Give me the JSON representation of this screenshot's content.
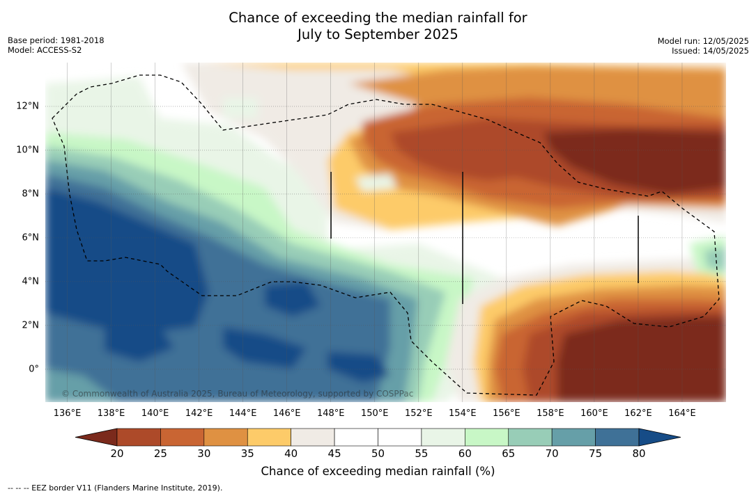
{
  "title": {
    "line1": "Chance of exceeding the median rainfall for",
    "line2": "July to September 2025"
  },
  "meta_left": {
    "base_period": "Base period: 1981-2018",
    "model": "Model: ACCESS-S2"
  },
  "meta_right": {
    "model_run": "Model run: 12/05/2025",
    "issued": "Issued: 14/05/2025"
  },
  "credit": "© Commonwealth of Australia 2025, Bureau of Meteorology, supported by COSPPac",
  "map": {
    "lat_ticks": [
      "12°N",
      "10°N",
      "8°N",
      "6°N",
      "4°N",
      "2°N",
      "0°"
    ],
    "lon_ticks": [
      "136°E",
      "138°E",
      "140°E",
      "142°E",
      "144°E",
      "146°E",
      "148°E",
      "150°E",
      "152°E",
      "154°E",
      "156°E",
      "158°E",
      "160°E",
      "162°E",
      "164°E"
    ],
    "lat_values": [
      12,
      10,
      8,
      6,
      4,
      2,
      0
    ],
    "lon_values": [
      136,
      138,
      140,
      142,
      144,
      146,
      148,
      150,
      152,
      154,
      156,
      158,
      160,
      162,
      164
    ],
    "lat_range": [
      -1.5,
      14
    ],
    "lon_range": [
      135,
      166
    ],
    "lines_dashed": true,
    "border_style": "dashed black"
  },
  "colorbar": {
    "ticks": [
      "20",
      "25",
      "30",
      "35",
      "40",
      "45",
      "50",
      "55",
      "60",
      "65",
      "70",
      "75",
      "80"
    ],
    "colors": [
      "#7b2a1c",
      "#ad4a29",
      "#c96533",
      "#df9142",
      "#fdcb69",
      "#f0ebe5",
      "#ffffff",
      "#ffffff",
      "#e9f5e7",
      "#c8f7c6",
      "#98cdb7",
      "#669fa8",
      "#3f7197",
      "#164c87"
    ],
    "label": "Chance of exceeding median rainfall (%)",
    "extend": "both"
  },
  "footer": "--  --  -- EEZ border V11 (Flanders Marine Institute, 2019)."
}
